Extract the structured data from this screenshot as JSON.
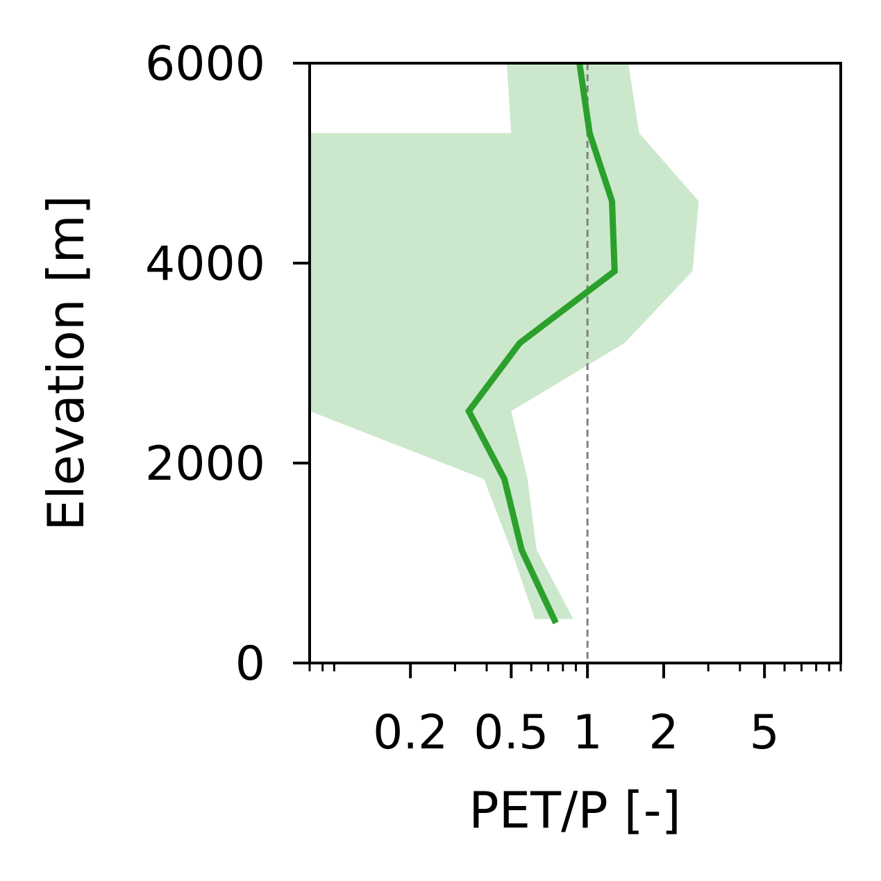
{
  "chart_data": {
    "type": "line",
    "xlabel": "PET/P [-]",
    "ylabel": "Elevation [m]",
    "xscale": "log",
    "xlim": [
      0.08,
      10
    ],
    "ylim": [
      0,
      6000
    ],
    "xticks": [
      {
        "value": 0.2,
        "label": "0.2"
      },
      {
        "value": 0.5,
        "label": "0.5"
      },
      {
        "value": 1,
        "label": "1"
      },
      {
        "value": 2,
        "label": "2"
      },
      {
        "value": 5,
        "label": "5"
      }
    ],
    "yticks": [
      {
        "value": 0,
        "label": "0"
      },
      {
        "value": 2000,
        "label": "2000"
      },
      {
        "value": 4000,
        "label": "4000"
      },
      {
        "value": 6000,
        "label": "6000"
      }
    ],
    "reference_line": {
      "x": 1,
      "style": "dashed",
      "color": "#808080"
    },
    "series": [
      {
        "color": "#2ca02c",
        "points": [
          {
            "x": 0.75,
            "y": 400
          },
          {
            "x": 0.55,
            "y": 1130
          },
          {
            "x": 0.47,
            "y": 1840
          },
          {
            "x": 0.34,
            "y": 2520
          },
          {
            "x": 0.54,
            "y": 3200
          },
          {
            "x": 1.28,
            "y": 3920
          },
          {
            "x": 1.25,
            "y": 4620
          },
          {
            "x": 1.02,
            "y": 5300
          },
          {
            "x": 0.93,
            "y": 6000
          }
        ]
      }
    ],
    "band": {
      "color": "#cce8cc",
      "points": [
        {
          "x": 0.82,
          "y": 440,
          "x_low": 0.62,
          "x_high": 0.88
        },
        {
          "x": 0.6,
          "y": 1130,
          "x_low": 0.5,
          "x_high": 0.63
        },
        {
          "x": 0.52,
          "y": 1840,
          "x_low": 0.39,
          "x_high": 0.58
        },
        {
          "x": 0.3,
          "y": 2520,
          "x_low": 0.08,
          "x_high": 0.5
        },
        {
          "x": 0.55,
          "y": 3200,
          "x_low": 0.08,
          "x_high": 1.4
        },
        {
          "x": 1.3,
          "y": 3920,
          "x_low": 0.08,
          "x_high": 2.6
        },
        {
          "x": 1.25,
          "y": 4620,
          "x_low": 0.08,
          "x_high": 2.75
        },
        {
          "x": 1.0,
          "y": 5300,
          "x_low": 0.08,
          "x_high": 1.6
        },
        {
          "x": 1.0,
          "y": 5300,
          "x_low": 0.5,
          "x_high": 1.6
        },
        {
          "x": 1.0,
          "y": 6000,
          "x_low": 0.48,
          "x_high": 1.45
        }
      ]
    },
    "grid": false,
    "legend": false
  }
}
